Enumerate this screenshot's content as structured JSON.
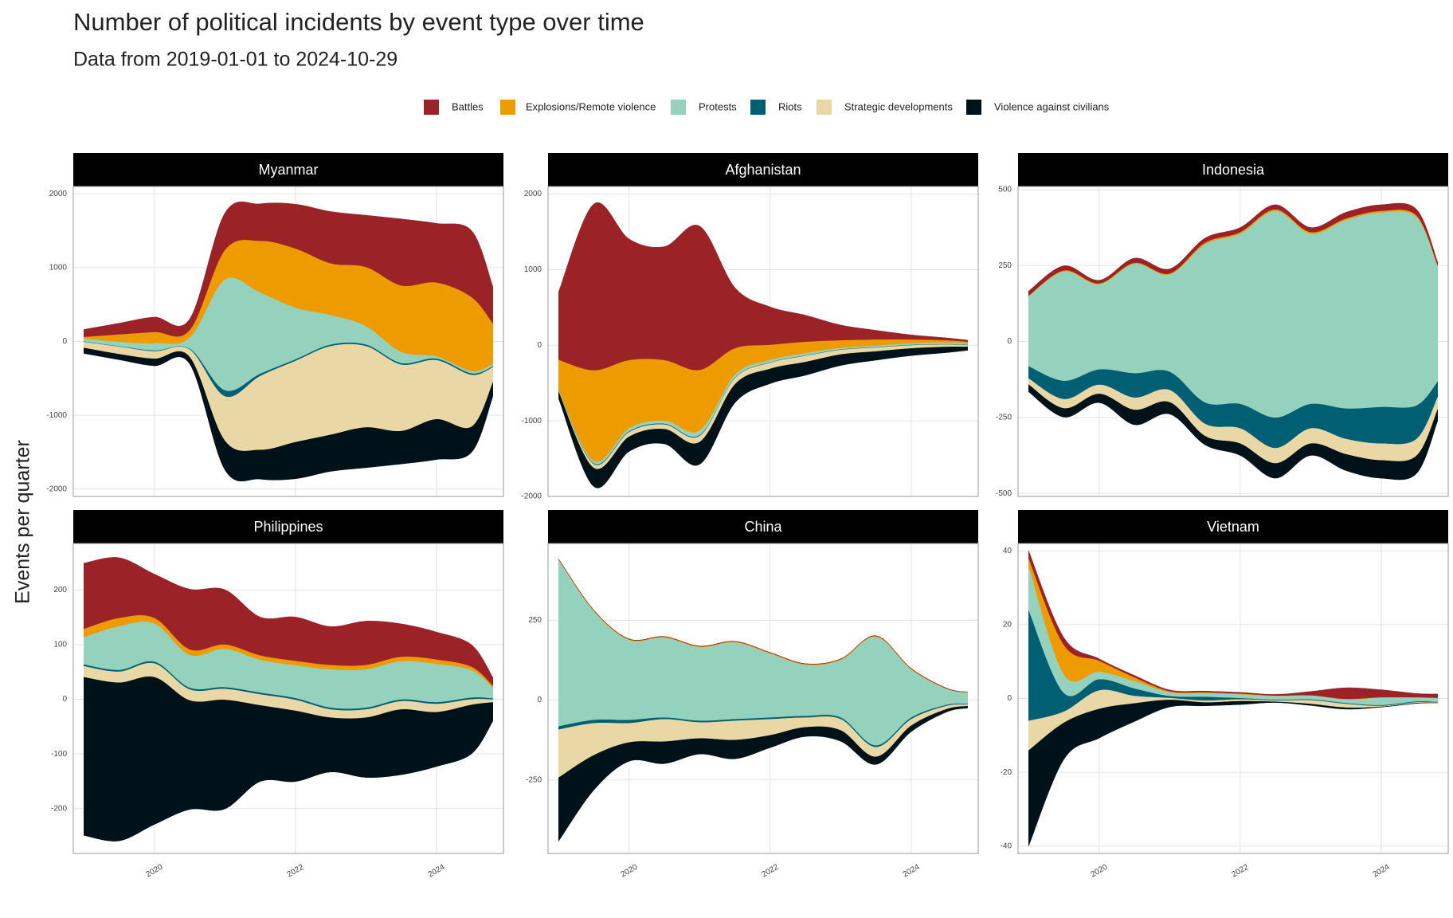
{
  "title": "Number of political incidents by event type over time",
  "subtitle": "Data from 2019-01-01 to 2024-10-29",
  "y_axis_label": "Events per quarter",
  "chart_data": [
    {
      "type": "streamgraph",
      "title": "Myanmar",
      "x": [
        2019,
        2019.5,
        2020,
        2020.5,
        2021,
        2021.5,
        2022,
        2022.5,
        2023,
        2023.5,
        2024,
        2024.5,
        2024.8
      ],
      "xlim": [
        2018.85,
        2024.95
      ],
      "xticks": [
        2020,
        2022,
        2024
      ],
      "ylim": [
        -2100,
        2100
      ],
      "yticks": [
        -2000,
        -1000,
        0,
        1000,
        2000
      ],
      "series": [
        {
          "name": "Battles",
          "color": "#9b2226",
          "values": [
            100,
            150,
            200,
            150,
            500,
            500,
            600,
            700,
            700,
            900,
            800,
            900,
            500
          ]
        },
        {
          "name": "Explosions/Remote violence",
          "color": "#ee9b00",
          "values": [
            20,
            100,
            150,
            100,
            400,
            700,
            800,
            700,
            800,
            900,
            1000,
            1000,
            550
          ]
        },
        {
          "name": "Protests",
          "color": "#94d2bd",
          "values": [
            40,
            60,
            100,
            150,
            1500,
            1100,
            700,
            400,
            250,
            150,
            30,
            30,
            30
          ]
        },
        {
          "name": "Riots",
          "color": "#005f73",
          "values": [
            5,
            5,
            10,
            10,
            80,
            30,
            20,
            20,
            20,
            20,
            20,
            20,
            10
          ]
        },
        {
          "name": "Strategic developments",
          "color": "#e9d8a6",
          "values": [
            80,
            100,
            100,
            100,
            600,
            1000,
            1100,
            1200,
            1100,
            900,
            800,
            700,
            200
          ]
        },
        {
          "name": "Violence against civilians",
          "color": "#001219",
          "values": [
            80,
            80,
            100,
            100,
            400,
            400,
            500,
            500,
            550,
            450,
            550,
            350,
            200
          ]
        }
      ]
    },
    {
      "type": "streamgraph",
      "title": "Afghanistan",
      "x": [
        2019,
        2019.5,
        2020,
        2020.5,
        2021,
        2021.5,
        2022,
        2022.5,
        2023,
        2023.5,
        2024,
        2024.5,
        2024.8
      ],
      "xlim": [
        2018.85,
        2024.95
      ],
      "xticks": [
        2020,
        2022,
        2024
      ],
      "ylim": [
        -2000,
        2100
      ],
      "yticks": [
        -2000,
        -1000,
        0,
        1000,
        2000
      ],
      "series": [
        {
          "name": "Battles",
          "color": "#9b2226",
          "values": [
            900,
            2200,
            1600,
            1500,
            1900,
            800,
            500,
            350,
            200,
            120,
            60,
            30,
            20
          ]
        },
        {
          "name": "Explosions/Remote violence",
          "color": "#ee9b00",
          "values": [
            400,
            1200,
            900,
            800,
            800,
            350,
            200,
            150,
            100,
            80,
            50,
            30,
            20
          ]
        },
        {
          "name": "Protests",
          "color": "#94d2bd",
          "values": [
            5,
            30,
            40,
            40,
            60,
            40,
            30,
            30,
            20,
            20,
            20,
            20,
            20
          ]
        },
        {
          "name": "Riots",
          "color": "#005f73",
          "values": [
            2,
            10,
            10,
            10,
            10,
            5,
            5,
            5,
            5,
            5,
            5,
            5,
            5
          ]
        },
        {
          "name": "Strategic developments",
          "color": "#e9d8a6",
          "values": [
            10,
            50,
            60,
            60,
            80,
            80,
            80,
            80,
            60,
            50,
            40,
            30,
            20
          ]
        },
        {
          "name": "Violence against civilians",
          "color": "#001219",
          "values": [
            100,
            250,
            200,
            200,
            300,
            250,
            200,
            180,
            150,
            120,
            100,
            80,
            50
          ]
        }
      ]
    },
    {
      "type": "streamgraph",
      "title": "Indonesia",
      "x": [
        2019,
        2019.5,
        2020,
        2020.5,
        2021,
        2021.5,
        2022,
        2022.5,
        2023,
        2023.5,
        2024,
        2024.5,
        2024.8
      ],
      "xlim": [
        2018.85,
        2024.95
      ],
      "xticks": [
        2020,
        2022,
        2024
      ],
      "ylim": [
        -510,
        510
      ],
      "yticks": [
        -500,
        -250,
        0,
        250,
        500
      ],
      "series": [
        {
          "name": "Battles",
          "color": "#9b2226",
          "values": [
            15,
            15,
            10,
            15,
            15,
            15,
            15,
            15,
            15,
            20,
            20,
            20,
            10
          ]
        },
        {
          "name": "Explosions/Remote violence",
          "color": "#ee9b00",
          "values": [
            2,
            3,
            3,
            3,
            3,
            5,
            5,
            5,
            5,
            5,
            5,
            5,
            3
          ]
        },
        {
          "name": "Protests",
          "color": "#94d2bd",
          "values": [
            230,
            360,
            280,
            360,
            320,
            520,
            560,
            680,
            560,
            620,
            640,
            620,
            380
          ]
        },
        {
          "name": "Riots",
          "color": "#005f73",
          "values": [
            40,
            60,
            50,
            80,
            60,
            70,
            80,
            100,
            80,
            100,
            120,
            110,
            50
          ]
        },
        {
          "name": "Strategic developments",
          "color": "#e9d8a6",
          "values": [
            20,
            30,
            30,
            40,
            40,
            40,
            50,
            50,
            50,
            50,
            55,
            55,
            40
          ]
        },
        {
          "name": "Violence against civilians",
          "color": "#001219",
          "values": [
            25,
            30,
            30,
            50,
            40,
            30,
            40,
            50,
            40,
            55,
            60,
            60,
            40
          ]
        }
      ]
    },
    {
      "type": "streamgraph",
      "title": "Philippines",
      "x": [
        2019,
        2019.5,
        2020,
        2020.5,
        2021,
        2021.5,
        2022,
        2022.5,
        2023,
        2023.5,
        2024,
        2024.5,
        2024.8
      ],
      "xlim": [
        2018.85,
        2024.95
      ],
      "xticks": [
        2020,
        2022,
        2024
      ],
      "ylim": [
        -282,
        285
      ],
      "yticks": [
        -200,
        -100,
        0,
        100,
        200
      ],
      "series": [
        {
          "name": "Battles",
          "color": "#9b2226",
          "values": [
            120,
            110,
            80,
            110,
            100,
            70,
            80,
            70,
            80,
            60,
            50,
            40,
            15
          ]
        },
        {
          "name": "Explosions/Remote violence",
          "color": "#ee9b00",
          "values": [
            15,
            15,
            10,
            10,
            8,
            8,
            8,
            8,
            8,
            8,
            8,
            6,
            3
          ]
        },
        {
          "name": "Protests",
          "color": "#94d2bd",
          "values": [
            50,
            80,
            70,
            60,
            70,
            60,
            60,
            70,
            70,
            70,
            70,
            50,
            20
          ]
        },
        {
          "name": "Riots",
          "color": "#005f73",
          "values": [
            3,
            3,
            3,
            3,
            3,
            3,
            3,
            3,
            3,
            3,
            3,
            3,
            2
          ]
        },
        {
          "name": "Strategic developments",
          "color": "#e9d8a6",
          "values": [
            20,
            20,
            25,
            20,
            20,
            20,
            20,
            15,
            15,
            15,
            15,
            10,
            5
          ]
        },
        {
          "name": "Violence against civilians",
          "color": "#001219",
          "values": [
            290,
            290,
            270,
            200,
            200,
            140,
            130,
            100,
            110,
            120,
            100,
            90,
            35
          ]
        }
      ]
    },
    {
      "type": "streamgraph",
      "title": "China",
      "x": [
        2019,
        2019.5,
        2020,
        2020.5,
        2021,
        2021.5,
        2022,
        2022.5,
        2023,
        2023.5,
        2024,
        2024.5,
        2024.8
      ],
      "xlim": [
        2018.85,
        2024.95
      ],
      "xticks": [
        2020,
        2022,
        2024
      ],
      "ylim": [
        -480,
        490
      ],
      "yticks": [
        -250,
        0,
        250
      ],
      "series": [
        {
          "name": "Battles",
          "color": "#9b2226",
          "values": [
            1,
            1,
            1,
            1,
            1,
            1,
            1,
            1,
            1,
            1,
            1,
            1,
            0
          ]
        },
        {
          "name": "Explosions/Remote violence",
          "color": "#ee9b00",
          "values": [
            2,
            2,
            2,
            2,
            2,
            2,
            2,
            2,
            2,
            2,
            2,
            1,
            1
          ]
        },
        {
          "name": "Protests",
          "color": "#94d2bd",
          "values": [
            520,
            340,
            250,
            250,
            230,
            240,
            200,
            160,
            180,
            340,
            150,
            50,
            35
          ]
        },
        {
          "name": "Riots",
          "color": "#005f73",
          "values": [
            10,
            10,
            10,
            5,
            5,
            5,
            5,
            5,
            5,
            5,
            5,
            3,
            2
          ]
        },
        {
          "name": "Strategic developments",
          "color": "#e9d8a6",
          "values": [
            150,
            100,
            60,
            70,
            50,
            60,
            50,
            30,
            35,
            30,
            20,
            10,
            5
          ]
        },
        {
          "name": "Violence against civilians",
          "color": "#001219",
          "values": [
            200,
            110,
            60,
            70,
            50,
            60,
            40,
            30,
            35,
            25,
            20,
            10,
            7
          ]
        }
      ]
    },
    {
      "type": "streamgraph",
      "title": "Vietnam",
      "x": [
        2019,
        2019.5,
        2020,
        2020.5,
        2021,
        2021.5,
        2022,
        2022.5,
        2023,
        2023.5,
        2024,
        2024.5,
        2024.8
      ],
      "xlim": [
        2018.85,
        2024.95
      ],
      "xticks": [
        2020,
        2022,
        2024
      ],
      "ylim": [
        -42,
        42
      ],
      "yticks": [
        -40,
        -20,
        0,
        20,
        40
      ],
      "series": [
        {
          "name": "Battles",
          "color": "#9b2226",
          "values": [
            2,
            2,
            0.5,
            0.5,
            0.3,
            0.3,
            0.3,
            0.3,
            1,
            3,
            2,
            1,
            1
          ]
        },
        {
          "name": "Explosions/Remote violence",
          "color": "#ee9b00",
          "values": [
            2,
            8,
            3,
            1,
            0.3,
            0.2,
            0.2,
            0.1,
            0.1,
            0.1,
            0.1,
            0.1,
            0.1
          ]
        },
        {
          "name": "Protests",
          "color": "#94d2bd",
          "values": [
            12,
            5,
            2,
            2,
            1,
            1,
            1,
            1,
            1,
            1,
            2,
            1,
            1
          ]
        },
        {
          "name": "Riots",
          "color": "#005f73",
          "values": [
            30,
            5,
            3,
            2,
            0.5,
            1,
            0.3,
            0.2,
            0.2,
            0.2,
            0.2,
            0.2,
            0.1
          ]
        },
        {
          "name": "Strategic developments",
          "color": "#e9d8a6",
          "values": [
            8,
            3,
            5,
            2,
            0.5,
            0.5,
            0.5,
            0.3,
            1,
            1,
            0.2,
            0.2,
            0.1
          ]
        },
        {
          "name": "Violence against civilians",
          "color": "#001219",
          "values": [
            26,
            10,
            8,
            5,
            2,
            1,
            1,
            0.3,
            0.5,
            0.5,
            0.2,
            0.2,
            0.1
          ]
        }
      ]
    }
  ]
}
